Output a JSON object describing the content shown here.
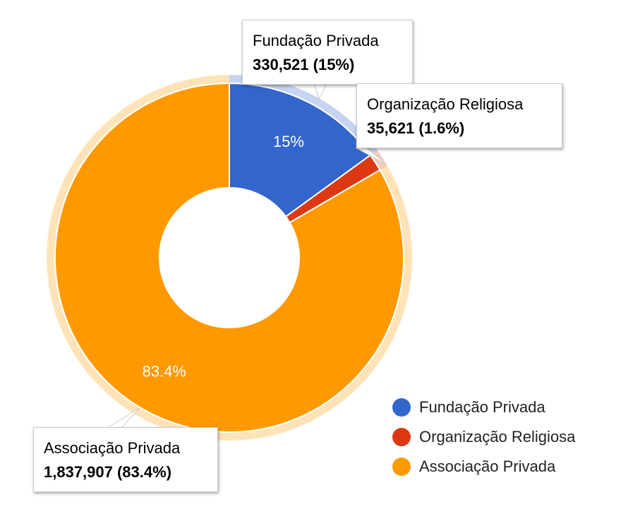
{
  "chart_data": {
    "type": "pie",
    "donut": true,
    "title": "",
    "legend_position": "bottom-right",
    "series": [
      {
        "name": "Fundação Privada",
        "value": 330521,
        "percent_label": "15%",
        "color": "#3366cc",
        "tooltip_value": "330,521 (15%)"
      },
      {
        "name": "Organização Religiosa",
        "value": 35621,
        "percent_label": "",
        "color": "#dc3912",
        "tooltip_value": "35,621 (1.6%)"
      },
      {
        "name": "Associação Privada",
        "value": 1837907,
        "percent_label": "83.4%",
        "color": "#ff9900",
        "tooltip_value": "1,837,907 (83.4%)"
      }
    ]
  },
  "tooltips": {
    "fundacao": {
      "name": "Fundação Privada",
      "value": "330,521 (15%)"
    },
    "religiosa": {
      "name": "Organização Religiosa",
      "value": "35,621 (1.6%)"
    },
    "associacao": {
      "name": "Associação Privada",
      "value": "1,837,907 (83.4%)"
    }
  },
  "legend": {
    "items": [
      {
        "label": "Fundação Privada",
        "color": "#3366cc"
      },
      {
        "label": "Organização Religiosa",
        "color": "#dc3912"
      },
      {
        "label": "Associação Privada",
        "color": "#ff9900"
      }
    ]
  }
}
